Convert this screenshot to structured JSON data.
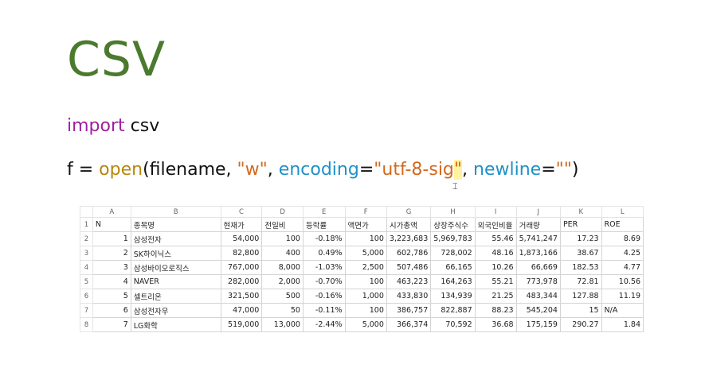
{
  "slide": {
    "title": "CSV",
    "code_line1": {
      "keyword": "import",
      "module": " csv"
    },
    "code_line2": {
      "lhs": "f = ",
      "fn": "open",
      "p1": "(filename, ",
      "mode": "\"w\"",
      "c1": ", ",
      "encoding_param": "encoding",
      "eq1": "=",
      "encoding_value_a": "\"utf-8-sig",
      "encoding_value_b": "\"",
      "c2": ", ",
      "newline_param": "newline",
      "eq2": "=",
      "newline_value": "\"\"",
      "close": ")"
    },
    "cursor_icon": "text-cursor-icon",
    "colors": {
      "title": "#4a7a2e",
      "keyword": "#a020a0",
      "function": "#b8860b",
      "string": "#d2691e",
      "param": "#1e90c8"
    }
  },
  "sheet": {
    "col_letters": [
      "A",
      "B",
      "C",
      "D",
      "E",
      "F",
      "G",
      "H",
      "I",
      "J",
      "K",
      "L"
    ],
    "row_numbers": [
      "1",
      "2",
      "3",
      "4",
      "5",
      "6",
      "7",
      "8"
    ],
    "rows": [
      [
        "N",
        "종목명",
        "현재가",
        "전일비",
        "등락률",
        "액면가",
        "시가총액",
        "상장주식수",
        "외국인비율",
        "거래량",
        "PER",
        "ROE"
      ],
      [
        "1",
        "삼성전자",
        "54,000",
        "100",
        "-0.18%",
        "100",
        "3,223,683",
        "5,969,783",
        "55.46",
        "5,741,247",
        "17.23",
        "8.69"
      ],
      [
        "2",
        "SK하이닉스",
        "82,800",
        "400",
        "0.49%",
        "5,000",
        "602,786",
        "728,002",
        "48.16",
        "1,873,166",
        "38.67",
        "4.25"
      ],
      [
        "3",
        "삼성바이오로직스",
        "767,000",
        "8,000",
        "-1.03%",
        "2,500",
        "507,486",
        "66,165",
        "10.26",
        "66,669",
        "182.53",
        "4.77"
      ],
      [
        "4",
        "NAVER",
        "282,000",
        "2,000",
        "-0.70%",
        "100",
        "463,223",
        "164,263",
        "55.21",
        "773,978",
        "72.81",
        "10.56"
      ],
      [
        "5",
        "셀트리온",
        "321,500",
        "500",
        "-0.16%",
        "1,000",
        "433,830",
        "134,939",
        "21.25",
        "483,344",
        "127.88",
        "11.19"
      ],
      [
        "6",
        "삼성전자우",
        "47,000",
        "50",
        "-0.11%",
        "100",
        "386,757",
        "822,887",
        "88.23",
        "545,204",
        "15",
        "N/A"
      ],
      [
        "7",
        "LG화학",
        "519,000",
        "13,000",
        "-2.44%",
        "5,000",
        "366,374",
        "70,592",
        "36.68",
        "175,159",
        "290.27",
        "1.84"
      ]
    ]
  }
}
